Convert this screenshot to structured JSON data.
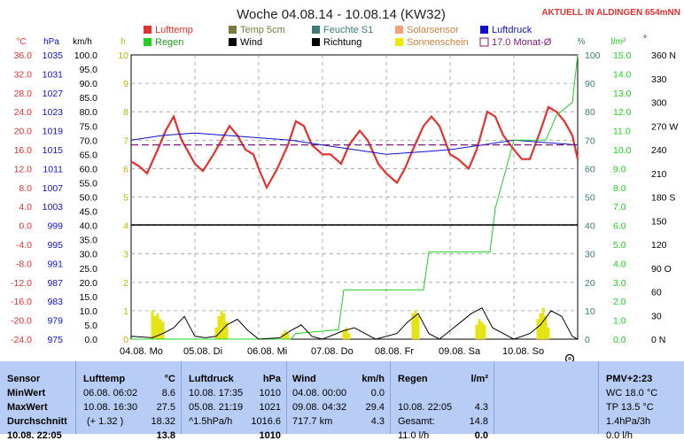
{
  "chart_data": {
    "type": "line",
    "title": "Woche 04.08.14 - 10.08.14 (KW32)",
    "status": "AKTUELL IN ALDINGEN 654mNN",
    "legend": [
      {
        "label": "Lufttemp",
        "color": "#e53030"
      },
      {
        "label": "Temp 5cm",
        "color": "#7a7a40"
      },
      {
        "label": "Feuchte S1",
        "color": "#3d7a7a"
      },
      {
        "label": "Solarsensor",
        "color": "#f4a078"
      },
      {
        "label": "Luftdruck",
        "color": "#1010d0"
      },
      {
        "label": "Regen",
        "color": "#20d020"
      },
      {
        "label": "Wind",
        "color": "#000000"
      },
      {
        "label": "Richtung",
        "color": "#000000"
      },
      {
        "label": "Sonnenschein",
        "color": "#e8e800"
      },
      {
        "label": "17.0 Monat-Ø",
        "color": "#7a1a7a"
      }
    ],
    "axes": {
      "celsius": {
        "unit": "°C",
        "labels": [
          "36.0",
          "32.0",
          "28.0",
          "24.0",
          "20.0",
          "16.0",
          "12.0",
          "8.0",
          "4.0",
          "0.0",
          "-4.0",
          "-8.0",
          "-12.0",
          "-16.0",
          "-20.0",
          "-24.0"
        ],
        "ylim": [
          -24,
          36
        ],
        "color": "#e53030"
      },
      "hpa": {
        "unit": "hPa",
        "labels": [
          "1035",
          "1031",
          "1027",
          "1023",
          "1019",
          "1015",
          "1011",
          "1007",
          "1003",
          "999",
          "995",
          "991",
          "987",
          "983",
          "979",
          "975"
        ],
        "ylim": [
          975,
          1035
        ],
        "color": "#1010d0"
      },
      "kmh": {
        "unit": "km/h",
        "labels": [
          "100.0",
          "95.0",
          "90.0",
          "85.0",
          "80.0",
          "75.0",
          "70.0",
          "65.0",
          "60.0",
          "55.0",
          "50.0",
          "45.0",
          "40.0",
          "35.0",
          "30.0",
          "25.0",
          "20.0",
          "15.0",
          "10.0",
          "5.0",
          "0.0"
        ],
        "ylim": [
          0,
          100
        ],
        "color": "#000000"
      },
      "hours": {
        "unit": "h",
        "labels": [
          "10",
          "9",
          "8",
          "7",
          "6",
          "5",
          "4",
          "3",
          "2",
          "1",
          "0"
        ],
        "ylim": [
          0,
          10
        ],
        "color": "#b8b800"
      },
      "percent": {
        "unit": "%",
        "labels": [
          "100",
          "90",
          "80",
          "70",
          "60",
          "50",
          "40",
          "30",
          "20",
          "10",
          "0"
        ],
        "ylim": [
          0,
          100
        ],
        "color": "#3d7a7a"
      },
      "rain": {
        "unit": "l/m²",
        "labels": [
          "15.0",
          "14.0",
          "13.0",
          "12.0",
          "11.0",
          "10.0",
          "9.0",
          "8.0",
          "7.0",
          "6.0",
          "5.0",
          "4.0",
          "3.0",
          "2.0",
          "1.0",
          "0.0"
        ],
        "ylim": [
          0,
          15
        ],
        "color": "#20d020"
      },
      "direction": {
        "unit": "°",
        "labels": [
          "360 N",
          "330",
          "300",
          "270 W",
          "240",
          "210",
          "180 S",
          "150",
          "120",
          "90 O",
          "60",
          "30",
          "0 N"
        ],
        "ylim": [
          0,
          360
        ],
        "color": "#000000"
      }
    },
    "x_labels": [
      "04.08. Mo",
      "05.08. Di",
      "06.08. Mi",
      "07.08. Do",
      "08.08. Fr",
      "09.08. Sa",
      "10.08. So"
    ],
    "monthly_mean_c": 17.0,
    "series": [
      {
        "name": "Lufttemp",
        "axis": "celsius",
        "values": [
          [
            0,
            13.5
          ],
          [
            3,
            12.5
          ],
          [
            6,
            11
          ],
          [
            10,
            16
          ],
          [
            13,
            20
          ],
          [
            16,
            23
          ],
          [
            19,
            18
          ],
          [
            22,
            15
          ],
          [
            24,
            13
          ],
          [
            27,
            11.5
          ],
          [
            31,
            15
          ],
          [
            34,
            18
          ],
          [
            37,
            21
          ],
          [
            40,
            19
          ],
          [
            43,
            16
          ],
          [
            46,
            15
          ],
          [
            48,
            12
          ],
          [
            51,
            8
          ],
          [
            55,
            12
          ],
          [
            59,
            17
          ],
          [
            62,
            22
          ],
          [
            65,
            21
          ],
          [
            68,
            17
          ],
          [
            72,
            15
          ],
          [
            75,
            15
          ],
          [
            79,
            13
          ],
          [
            82,
            17
          ],
          [
            86,
            20
          ],
          [
            89,
            18
          ],
          [
            93,
            13
          ],
          [
            96,
            11
          ],
          [
            100,
            9
          ],
          [
            103,
            12
          ],
          [
            106,
            16
          ],
          [
            110,
            21
          ],
          [
            113,
            23
          ],
          [
            116,
            21
          ],
          [
            120,
            15
          ],
          [
            123,
            14
          ],
          [
            127,
            12
          ],
          [
            130,
            16
          ],
          [
            134,
            24
          ],
          [
            137,
            23
          ],
          [
            140,
            19
          ],
          [
            144,
            16
          ],
          [
            147,
            14
          ],
          [
            150,
            14
          ],
          [
            154,
            20
          ],
          [
            157,
            25
          ],
          [
            160,
            24
          ],
          [
            163,
            22
          ],
          [
            166,
            19
          ],
          [
            168,
            14
          ]
        ]
      },
      {
        "name": "Luftdruck",
        "axis": "hpa",
        "values": [
          [
            0,
            1017
          ],
          [
            12,
            1018
          ],
          [
            24,
            1018.5
          ],
          [
            36,
            1018
          ],
          [
            48,
            1017.5
          ],
          [
            60,
            1017
          ],
          [
            72,
            1016
          ],
          [
            84,
            1015
          ],
          [
            96,
            1014
          ],
          [
            108,
            1014.5
          ],
          [
            120,
            1015
          ],
          [
            132,
            1016
          ],
          [
            144,
            1017
          ],
          [
            156,
            1016.5
          ],
          [
            168,
            1016
          ]
        ]
      },
      {
        "name": "Regen",
        "axis": "rain",
        "values": [
          [
            0,
            0
          ],
          [
            60,
            0
          ],
          [
            62,
            0.3
          ],
          [
            78,
            0.5
          ],
          [
            80,
            2.6
          ],
          [
            110,
            2.6
          ],
          [
            112,
            4.6
          ],
          [
            135,
            4.6
          ],
          [
            137,
            6.9
          ],
          [
            144,
            10.5
          ],
          [
            156,
            10.5
          ],
          [
            160,
            11.8
          ],
          [
            166,
            12.5
          ],
          [
            168,
            15
          ]
        ]
      },
      {
        "name": "Wind",
        "axis": "kmh",
        "values": [
          [
            0,
            1
          ],
          [
            8,
            0.5
          ],
          [
            12,
            2
          ],
          [
            16,
            4
          ],
          [
            20,
            8
          ],
          [
            24,
            1
          ],
          [
            28,
            0.5
          ],
          [
            32,
            1
          ],
          [
            36,
            5
          ],
          [
            40,
            7
          ],
          [
            44,
            3
          ],
          [
            48,
            0
          ],
          [
            56,
            0.5
          ],
          [
            60,
            3
          ],
          [
            64,
            5
          ],
          [
            68,
            1
          ],
          [
            72,
            0
          ],
          [
            80,
            3
          ],
          [
            84,
            4
          ],
          [
            88,
            2
          ],
          [
            92,
            0
          ],
          [
            100,
            2
          ],
          [
            104,
            6
          ],
          [
            108,
            9
          ],
          [
            112,
            2
          ],
          [
            116,
            0
          ],
          [
            120,
            3
          ],
          [
            124,
            6
          ],
          [
            128,
            9
          ],
          [
            132,
            11
          ],
          [
            136,
            4
          ],
          [
            140,
            2
          ],
          [
            144,
            0
          ],
          [
            150,
            2
          ],
          [
            154,
            5
          ],
          [
            158,
            10
          ],
          [
            162,
            8
          ],
          [
            166,
            1
          ],
          [
            168,
            0
          ]
        ]
      }
    ],
    "sunshine_hours_per_slot": [
      [
        8,
        1.0
      ],
      [
        9,
        0.8
      ],
      [
        10,
        0.9
      ],
      [
        11,
        0.7
      ],
      [
        12,
        0.6
      ],
      [
        32,
        0.4
      ],
      [
        33,
        0.8
      ],
      [
        34,
        1.0
      ],
      [
        35,
        0.9
      ],
      [
        36,
        0.6
      ],
      [
        57,
        0.2
      ],
      [
        58,
        0.3
      ],
      [
        59,
        0.2
      ],
      [
        80,
        0.3
      ],
      [
        81,
        0.4
      ],
      [
        82,
        0.2
      ],
      [
        106,
        0.9
      ],
      [
        107,
        1.0
      ],
      [
        108,
        0.8
      ],
      [
        130,
        0.5
      ],
      [
        131,
        0.7
      ],
      [
        132,
        0.6
      ],
      [
        133,
        0.5
      ],
      [
        153,
        0.7
      ],
      [
        154,
        0.9
      ],
      [
        155,
        1.1
      ],
      [
        156,
        0.8
      ],
      [
        157,
        0.4
      ]
    ]
  },
  "table": {
    "sensor": {
      "header": "Sensor",
      "rows": [
        "MinWert",
        "MaxWert",
        "Durchschnitt",
        "10.08. 22:05"
      ]
    },
    "lufttemp": {
      "header": "Lufttemp",
      "unit": "°C",
      "rows": [
        [
          "06.08.  06:02",
          "8.6"
        ],
        [
          "10.08.  16:30",
          "27.5"
        ],
        [
          "(+ 1.32 )",
          "18.32"
        ],
        [
          "",
          "13.8"
        ]
      ]
    },
    "luftdruck": {
      "header": "Luftdruck",
      "unit": "hPa",
      "rows": [
        [
          "10.08.  17:35",
          "1010"
        ],
        [
          "05.08.  21:19",
          "1021"
        ],
        [
          "^1.5hPa/h",
          "1016.6"
        ],
        [
          "",
          "1010"
        ]
      ]
    },
    "wind": {
      "header": "Wind",
      "unit": "km/h",
      "rows": [
        [
          "04.08.  00:00",
          "0.0"
        ],
        [
          "09.08.  04:32",
          "29.4"
        ],
        [
          "717.7 km",
          "4.3"
        ],
        [
          "",
          ""
        ]
      ]
    },
    "regen": {
      "header": "Regen",
      "unit": "l/m²",
      "rows": [
        [
          "",
          ""
        ],
        [
          "10.08.  22:05",
          "4.3"
        ],
        [
          "Gesamt:",
          "14.8"
        ],
        [
          "11.0 l/h",
          "0.0"
        ]
      ]
    },
    "pmv": {
      "header": "PMV+2:23",
      "rows": [
        "WC 18.0 °C",
        "TP 13.5 °C",
        "1.4hPa/3h",
        "0.0 l/h"
      ]
    }
  }
}
